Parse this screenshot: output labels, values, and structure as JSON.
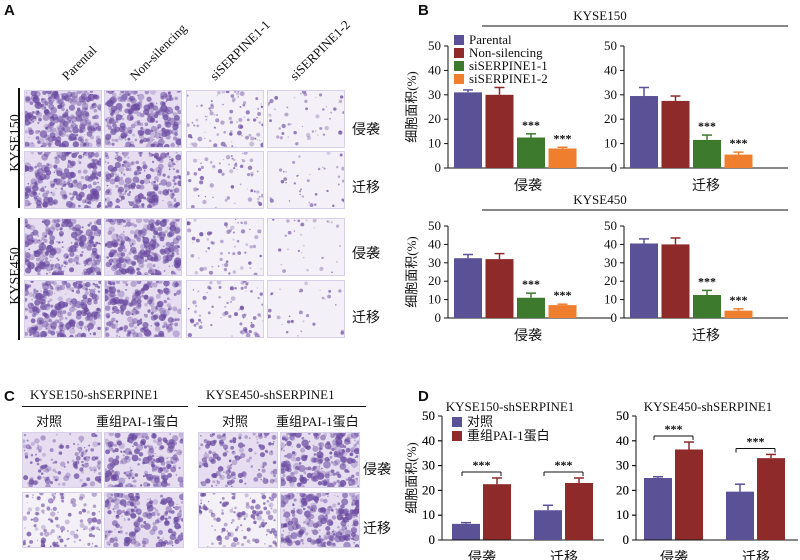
{
  "panels": {
    "a": {
      "letter": "A",
      "columns": [
        "Parental",
        "Non-silencing",
        "siSERPINE1-1",
        "siSERPINE1-2"
      ],
      "rows": [
        "KYSE150",
        "KYSE450"
      ],
      "assays": [
        "侵袭",
        "迁移",
        "侵袭",
        "迁移"
      ]
    },
    "b": {
      "letter": "B"
    },
    "c": {
      "letter": "C",
      "groups": [
        "KYSE150-shSERPINE1",
        "KYSE450-shSERPINE1"
      ],
      "columns": [
        "对照",
        "重组PAI-1蛋白",
        "对照",
        "重组PAI-1蛋白"
      ],
      "assays": [
        "侵袭",
        "迁移"
      ]
    },
    "d": {
      "letter": "D"
    }
  },
  "colors": {
    "parental": "#5b5196",
    "non_silencing": "#8e2a2a",
    "si1": "#3d7a2e",
    "si2": "#ef7f2f",
    "control": "#5b5196",
    "pai": "#8e2a2a",
    "stain": "#6a4aa0"
  },
  "chart_data": [
    {
      "type": "bar",
      "panel": "B",
      "title": "KYSE150",
      "ylabel": "细胞面积(%)",
      "ylim": [
        0,
        50
      ],
      "categories": [
        "侵袭",
        "迁移"
      ],
      "legend": "top-left",
      "series": [
        {
          "name": "Parental",
          "values": [
            31,
            29.5
          ],
          "errors": [
            1,
            3.5
          ],
          "sig": [
            "",
            ""
          ]
        },
        {
          "name": "Non-silencing",
          "values": [
            30,
            27.5
          ],
          "errors": [
            3,
            2
          ],
          "sig": [
            "",
            ""
          ]
        },
        {
          "name": "siSERPINE1-1",
          "values": [
            12.5,
            11.5
          ],
          "errors": [
            1.5,
            2
          ],
          "sig": [
            "***",
            "***"
          ]
        },
        {
          "name": "siSERPINE1-2",
          "values": [
            8,
            5.5
          ],
          "errors": [
            0.5,
            1
          ],
          "sig": [
            "***",
            "***"
          ]
        }
      ]
    },
    {
      "type": "bar",
      "panel": "B",
      "title": "KYSE450",
      "ylabel": "细胞面积(%)",
      "ylim": [
        0,
        50
      ],
      "categories": [
        "侵袭",
        "迁移"
      ],
      "series": [
        {
          "name": "Parental",
          "values": [
            32.5,
            40.5
          ],
          "errors": [
            2,
            2.5
          ],
          "sig": [
            "",
            ""
          ]
        },
        {
          "name": "Non-silencing",
          "values": [
            32,
            40
          ],
          "errors": [
            3,
            3.5
          ],
          "sig": [
            "",
            ""
          ]
        },
        {
          "name": "siSERPINE1-1",
          "values": [
            11,
            12.5
          ],
          "errors": [
            2.5,
            2.5
          ],
          "sig": [
            "***",
            "***"
          ]
        },
        {
          "name": "siSERPINE1-2",
          "values": [
            7,
            4
          ],
          "errors": [
            0.5,
            1
          ],
          "sig": [
            "***",
            "***"
          ]
        }
      ]
    },
    {
      "type": "bar",
      "panel": "D",
      "title": "KYSE150-shSERPINE1",
      "ylabel": "细胞面积(%)",
      "ylim": [
        0,
        50
      ],
      "categories": [
        "侵袭",
        "迁移"
      ],
      "legend": "top-left",
      "series": [
        {
          "name": "对照",
          "values": [
            6.5,
            12
          ],
          "errors": [
            0.5,
            2
          ]
        },
        {
          "name": "重组PAI-1蛋白",
          "values": [
            22.5,
            23
          ],
          "errors": [
            2.5,
            2
          ]
        }
      ],
      "sig": [
        "***",
        "***"
      ]
    },
    {
      "type": "bar",
      "panel": "D",
      "title": "KYSE450-shSERPINE1",
      "ylim": [
        0,
        50
      ],
      "categories": [
        "侵袭",
        "迁移"
      ],
      "series": [
        {
          "name": "对照",
          "values": [
            25,
            19.5
          ],
          "errors": [
            0.5,
            3
          ]
        },
        {
          "name": "重组PAI-1蛋白",
          "values": [
            36.5,
            33
          ],
          "errors": [
            3,
            1.5
          ]
        }
      ],
      "sig": [
        "***",
        "***"
      ]
    }
  ]
}
